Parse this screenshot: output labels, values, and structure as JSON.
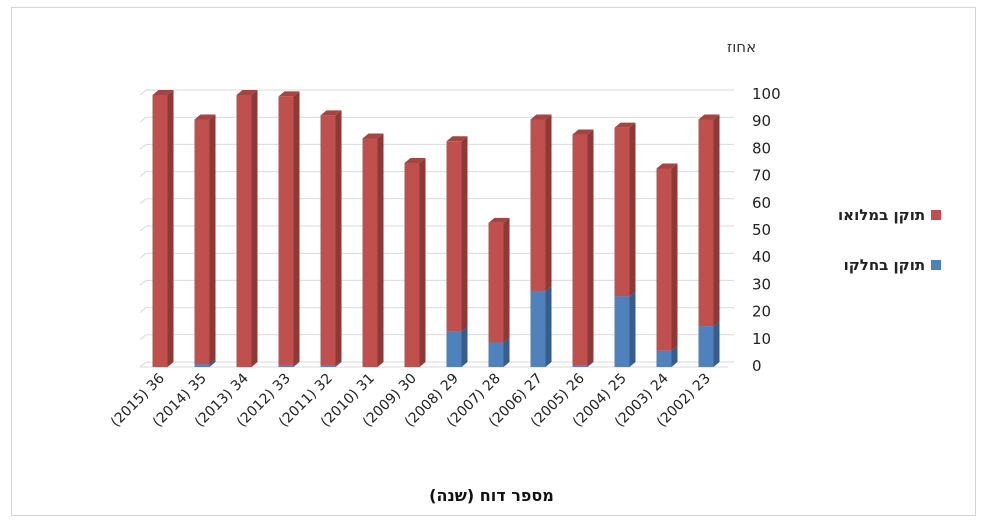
{
  "chart_data": {
    "type": "bar",
    "stacked": true,
    "title": "",
    "xlabel": "מספר דוח (שנה)",
    "ylabel": "אחוז",
    "ylim": [
      0,
      100
    ],
    "yticks": [
      0,
      10,
      20,
      30,
      40,
      50,
      60,
      70,
      80,
      90,
      100
    ],
    "grid": true,
    "legend_position": "right",
    "categories": [
      "(2015) 36",
      "(2014) 35",
      "(2013) 34",
      "(2012) 33",
      "(2011) 32",
      "(2010) 31",
      "(2009) 30",
      "(2008) 29",
      "(2007) 28",
      "(2006) 27",
      "(2005) 26",
      "(2004) 25",
      "(2003) 24",
      "(2002) 23"
    ],
    "series": [
      {
        "name": "תוקן בחלקו",
        "color": "#4f81bd",
        "values": [
          0,
          1,
          0,
          0.5,
          0.5,
          0,
          0,
          13,
          9,
          28,
          0.5,
          26,
          6,
          15
        ]
      },
      {
        "name": "תוקן במלואו",
        "color": "#c0504d",
        "values": [
          100,
          90,
          100,
          99,
          92,
          84,
          75,
          70,
          44,
          63,
          85,
          62,
          67,
          76
        ]
      }
    ]
  }
}
